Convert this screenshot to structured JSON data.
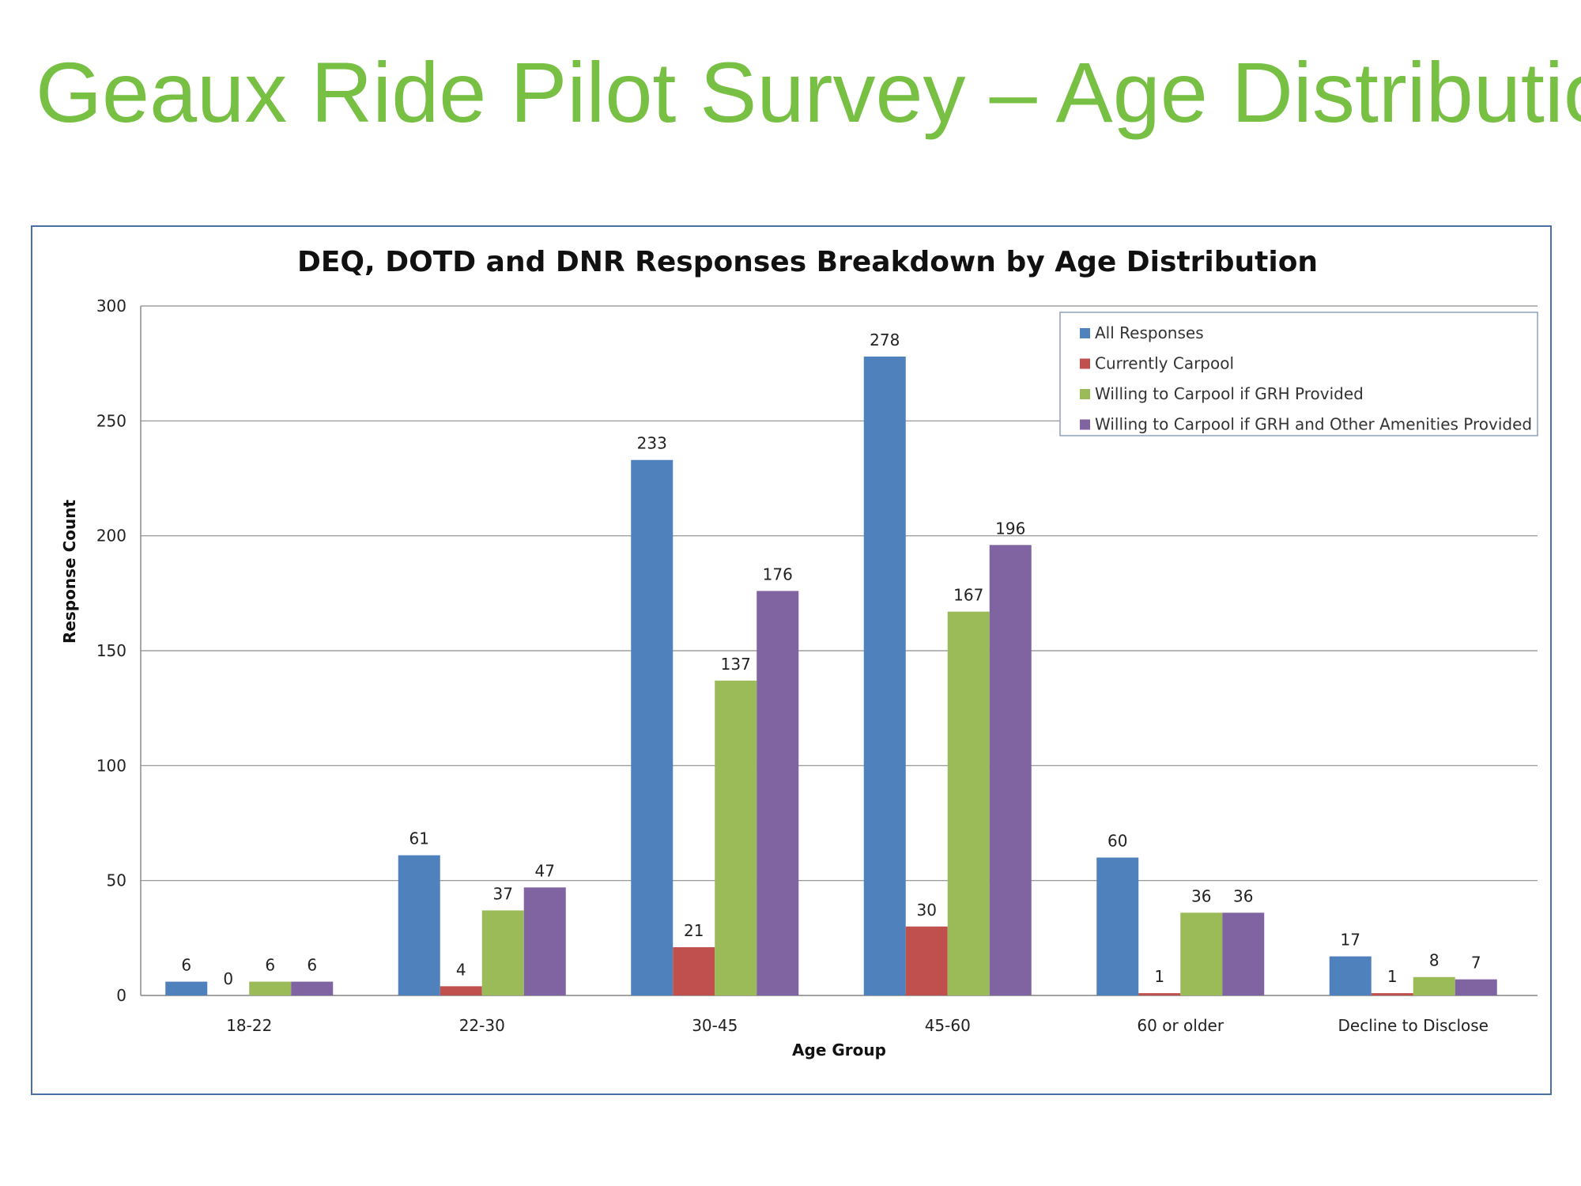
{
  "slide": {
    "title": "Geaux Ride Pilot Survey – Age Distribution"
  },
  "chart_data": {
    "type": "bar",
    "title": "DEQ, DOTD and DNR Responses Breakdown by Age Distribution",
    "xlabel": "Age Group",
    "ylabel": "Response Count",
    "ylim": [
      0,
      300
    ],
    "yticks": [
      0,
      50,
      100,
      150,
      200,
      250,
      300
    ],
    "grid": true,
    "legend_position": "top-right",
    "categories": [
      "18-22",
      "22-30",
      "30-45",
      "45-60",
      "60 or older",
      "Decline to Disclose"
    ],
    "series": [
      {
        "name": "All Responses",
        "color": "#4f81bd",
        "values": [
          6,
          61,
          233,
          278,
          60,
          17
        ]
      },
      {
        "name": "Currently Carpool",
        "color": "#c0504d",
        "values": [
          0,
          4,
          21,
          30,
          1,
          1
        ]
      },
      {
        "name": "Willing to Carpool if GRH Provided",
        "color": "#9bbb59",
        "values": [
          6,
          37,
          137,
          167,
          36,
          8
        ]
      },
      {
        "name": "Willing to Carpool if GRH and Other Amenities Provided",
        "color": "#8064a2",
        "values": [
          6,
          47,
          176,
          196,
          36,
          7
        ]
      }
    ]
  }
}
